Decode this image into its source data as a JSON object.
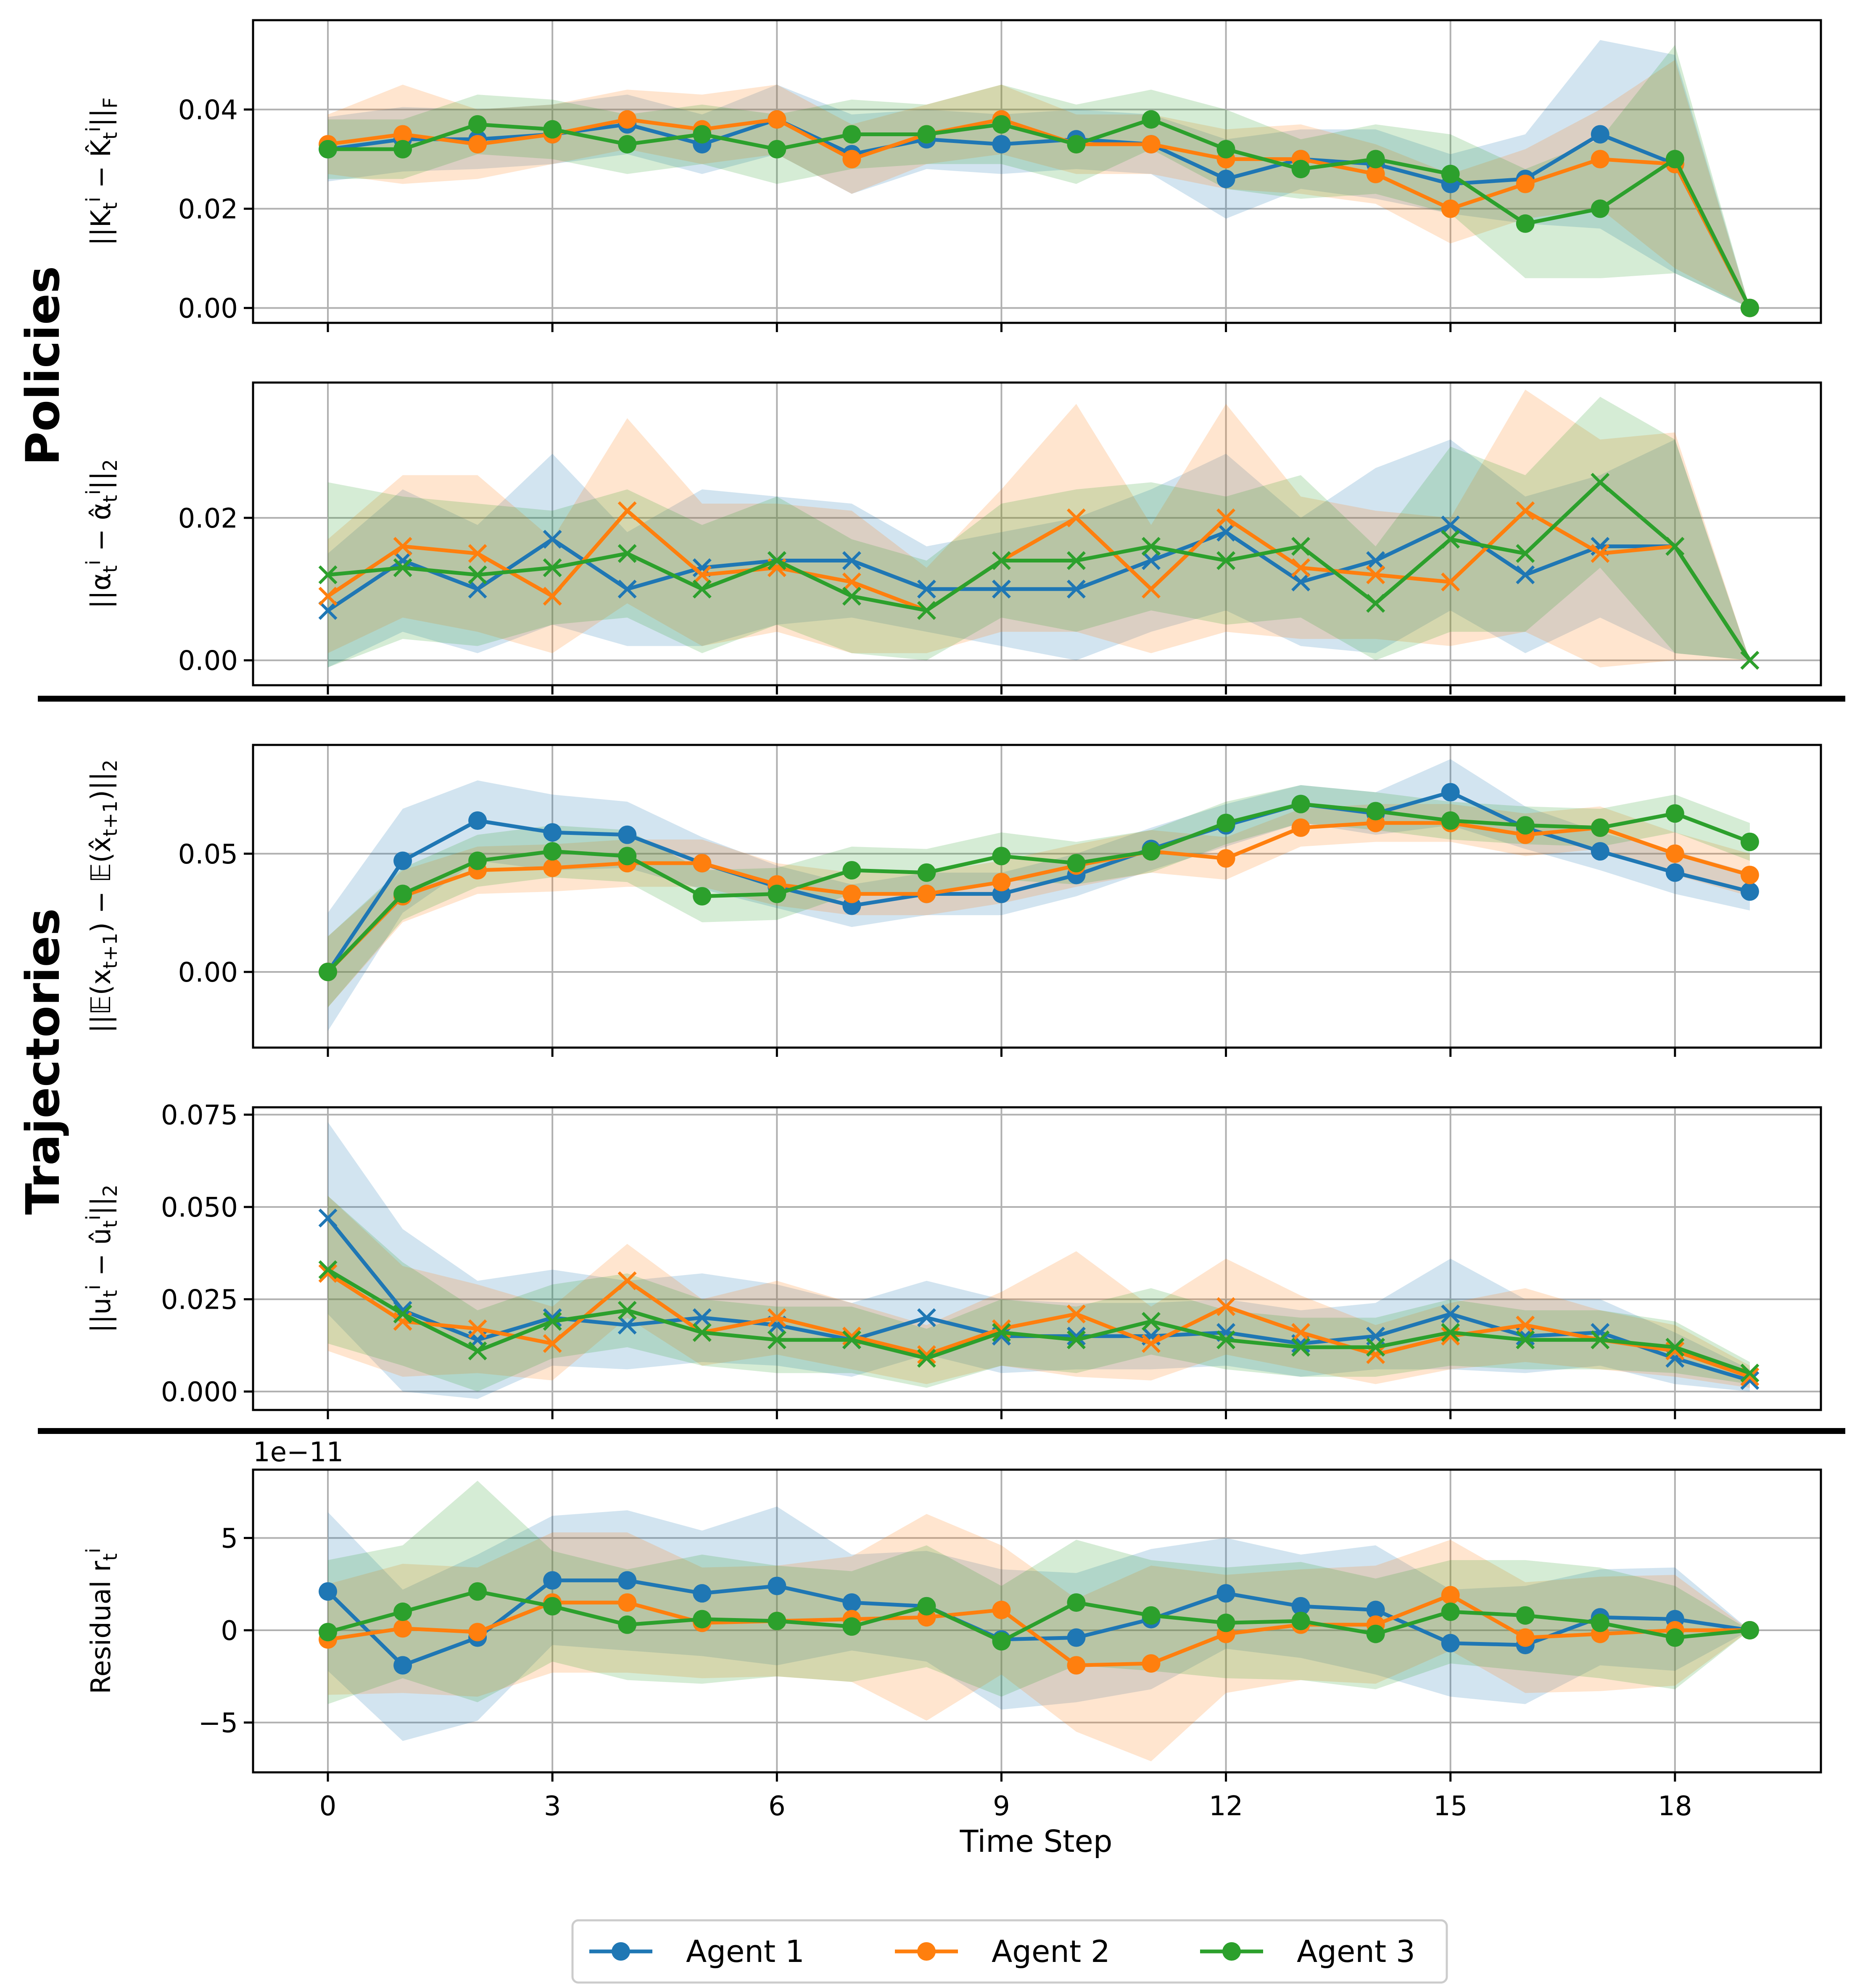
{
  "figure": {
    "section_policies": "Policies",
    "section_trajectories": "Trajectories",
    "xlabel": "Time Step",
    "legend": [
      "Agent 1",
      "Agent 2",
      "Agent 3"
    ]
  },
  "colors": {
    "agent1": "#1f77b4",
    "agent2": "#ff7f0e",
    "agent3": "#2ca02c",
    "grid": "#b0b0b0"
  },
  "chart_data": [
    {
      "type": "line",
      "id": "policy-k",
      "ylabel": "||K_t^i − K̂_t^i||_F",
      "marker": "circle",
      "x": [
        0,
        1,
        2,
        3,
        4,
        5,
        6,
        7,
        8,
        9,
        10,
        11,
        12,
        13,
        14,
        15,
        16,
        17,
        18,
        19
      ],
      "xticks": [
        0,
        3,
        6,
        9,
        12,
        15,
        18
      ],
      "ylim": [
        -0.003,
        0.058
      ],
      "yticks": [
        0.0,
        0.02,
        0.04
      ],
      "yticklabels": [
        "0.00",
        "0.02",
        "0.04"
      ],
      "series": [
        {
          "name": "Agent 1",
          "values": [
            0.032,
            0.034,
            0.034,
            0.035,
            0.037,
            0.033,
            0.038,
            0.031,
            0.034,
            0.033,
            0.034,
            0.033,
            0.026,
            0.03,
            0.029,
            0.025,
            0.026,
            0.035,
            0.029,
            0.0
          ],
          "band": [
            0.0065,
            0.0065,
            0.006,
            0.006,
            0.006,
            0.006,
            0.007,
            0.008,
            0.006,
            0.006,
            0.006,
            0.006,
            0.008,
            0.006,
            0.007,
            0.006,
            0.009,
            0.019,
            0.022,
            0.0
          ]
        },
        {
          "name": "Agent 2",
          "values": [
            0.033,
            0.035,
            0.033,
            0.035,
            0.038,
            0.036,
            0.038,
            0.03,
            0.035,
            0.038,
            0.033,
            0.033,
            0.03,
            0.03,
            0.027,
            0.02,
            0.025,
            0.03,
            0.029,
            0.0
          ],
          "band": [
            0.006,
            0.01,
            0.007,
            0.006,
            0.006,
            0.007,
            0.007,
            0.007,
            0.006,
            0.007,
            0.006,
            0.006,
            0.006,
            0.007,
            0.006,
            0.007,
            0.007,
            0.01,
            0.021,
            0.0
          ]
        },
        {
          "name": "Agent 3",
          "values": [
            0.032,
            0.032,
            0.037,
            0.036,
            0.033,
            0.035,
            0.032,
            0.035,
            0.035,
            0.037,
            0.033,
            0.038,
            0.032,
            0.028,
            0.03,
            0.027,
            0.017,
            0.02,
            0.03,
            0.0
          ],
          "band": [
            0.006,
            0.006,
            0.006,
            0.006,
            0.006,
            0.006,
            0.007,
            0.007,
            0.006,
            0.008,
            0.008,
            0.006,
            0.008,
            0.006,
            0.007,
            0.008,
            0.011,
            0.014,
            0.023,
            0.0
          ]
        }
      ]
    },
    {
      "type": "line",
      "id": "policy-alpha",
      "ylabel": "||α_t^i − α̂_t^i||_2",
      "marker": "x",
      "x": [
        0,
        1,
        2,
        3,
        4,
        5,
        6,
        7,
        8,
        9,
        10,
        11,
        12,
        13,
        14,
        15,
        16,
        17,
        18,
        19
      ],
      "xticks": [
        0,
        3,
        6,
        9,
        12,
        15,
        18
      ],
      "ylim": [
        -0.0035,
        0.039
      ],
      "yticks": [
        0.0,
        0.02
      ],
      "yticklabels": [
        "0.00",
        "0.02"
      ],
      "series": [
        {
          "name": "Agent 1",
          "values": [
            0.007,
            0.014,
            0.01,
            0.017,
            0.01,
            0.013,
            0.014,
            0.014,
            0.01,
            0.01,
            0.01,
            0.014,
            0.018,
            0.011,
            0.014,
            0.019,
            0.012,
            0.016,
            0.016,
            0.0
          ],
          "band": [
            0.008,
            0.01,
            0.009,
            0.012,
            0.008,
            0.011,
            0.009,
            0.008,
            0.006,
            0.008,
            0.01,
            0.01,
            0.011,
            0.009,
            0.013,
            0.012,
            0.011,
            0.01,
            0.015,
            0.0
          ]
        },
        {
          "name": "Agent 2",
          "values": [
            0.009,
            0.016,
            0.015,
            0.009,
            0.021,
            0.012,
            0.013,
            0.011,
            0.007,
            0.014,
            0.02,
            0.01,
            0.02,
            0.013,
            0.012,
            0.011,
            0.021,
            0.015,
            0.016,
            0.0
          ],
          "band": [
            0.008,
            0.01,
            0.011,
            0.008,
            0.013,
            0.01,
            0.009,
            0.01,
            0.006,
            0.01,
            0.016,
            0.009,
            0.016,
            0.01,
            0.009,
            0.009,
            0.017,
            0.016,
            0.016,
            0.0
          ]
        },
        {
          "name": "Agent 3",
          "values": [
            0.012,
            0.013,
            0.012,
            0.013,
            0.015,
            0.01,
            0.014,
            0.009,
            0.007,
            0.014,
            0.014,
            0.016,
            0.014,
            0.016,
            0.008,
            0.017,
            0.015,
            0.025,
            0.016,
            0.0
          ],
          "band": [
            0.013,
            0.01,
            0.01,
            0.008,
            0.009,
            0.009,
            0.009,
            0.008,
            0.007,
            0.008,
            0.01,
            0.009,
            0.009,
            0.01,
            0.008,
            0.013,
            0.011,
            0.012,
            0.015,
            0.0
          ]
        }
      ]
    },
    {
      "type": "line",
      "id": "traj-state",
      "ylabel": "||𝔼(x_{t+1}) − 𝔼(x̂_{t+1})||_2",
      "marker": "circle",
      "x": [
        0,
        1,
        2,
        3,
        4,
        5,
        6,
        7,
        8,
        9,
        10,
        11,
        12,
        13,
        14,
        15,
        16,
        17,
        18,
        19
      ],
      "xticks": [
        0,
        3,
        6,
        9,
        12,
        15,
        18
      ],
      "ylim": [
        -0.032,
        0.096
      ],
      "yticks": [
        0.0,
        0.05
      ],
      "yticklabels": [
        "0.00",
        "0.05"
      ],
      "series": [
        {
          "name": "Agent 1",
          "values": [
            0.0,
            0.047,
            0.064,
            0.059,
            0.058,
            0.046,
            0.036,
            0.028,
            0.033,
            0.033,
            0.041,
            0.052,
            0.062,
            0.071,
            0.067,
            0.076,
            0.061,
            0.051,
            0.042,
            0.034
          ],
          "band": [
            0.025,
            0.022,
            0.017,
            0.016,
            0.014,
            0.011,
            0.009,
            0.009,
            0.009,
            0.009,
            0.009,
            0.009,
            0.009,
            0.008,
            0.009,
            0.014,
            0.009,
            0.008,
            0.009,
            0.008
          ]
        },
        {
          "name": "Agent 2",
          "values": [
            0.0,
            0.032,
            0.043,
            0.044,
            0.046,
            0.046,
            0.037,
            0.033,
            0.033,
            0.038,
            0.045,
            0.051,
            0.048,
            0.061,
            0.063,
            0.063,
            0.058,
            0.061,
            0.05,
            0.041
          ],
          "band": [
            0.015,
            0.011,
            0.01,
            0.01,
            0.01,
            0.01,
            0.009,
            0.009,
            0.009,
            0.009,
            0.009,
            0.009,
            0.009,
            0.008,
            0.008,
            0.008,
            0.009,
            0.009,
            0.009,
            0.009
          ]
        },
        {
          "name": "Agent 3",
          "values": [
            0.0,
            0.033,
            0.047,
            0.051,
            0.049,
            0.032,
            0.033,
            0.043,
            0.042,
            0.049,
            0.046,
            0.051,
            0.063,
            0.071,
            0.068,
            0.064,
            0.062,
            0.061,
            0.067,
            0.055
          ],
          "band": [
            0.015,
            0.011,
            0.011,
            0.011,
            0.011,
            0.011,
            0.011,
            0.01,
            0.01,
            0.01,
            0.009,
            0.009,
            0.009,
            0.008,
            0.008,
            0.008,
            0.008,
            0.008,
            0.008,
            0.008
          ]
        }
      ]
    },
    {
      "type": "line",
      "id": "traj-control",
      "ylabel": "||u_t^i − û_t^i||_2",
      "marker": "x",
      "x": [
        0,
        1,
        2,
        3,
        4,
        5,
        6,
        7,
        8,
        9,
        10,
        11,
        12,
        13,
        14,
        15,
        16,
        17,
        18,
        19
      ],
      "xticks": [
        0,
        3,
        6,
        9,
        12,
        15,
        18
      ],
      "ylim": [
        -0.005,
        0.077
      ],
      "yticks": [
        0.0,
        0.025,
        0.05,
        0.075
      ],
      "yticklabels": [
        "0.000",
        "0.025",
        "0.050",
        "0.075"
      ],
      "series": [
        {
          "name": "Agent 1",
          "values": [
            0.047,
            0.022,
            0.014,
            0.02,
            0.018,
            0.02,
            0.018,
            0.014,
            0.02,
            0.015,
            0.015,
            0.015,
            0.016,
            0.013,
            0.015,
            0.021,
            0.015,
            0.016,
            0.009,
            0.003
          ],
          "band": [
            0.026,
            0.022,
            0.016,
            0.013,
            0.012,
            0.012,
            0.011,
            0.01,
            0.01,
            0.01,
            0.009,
            0.009,
            0.009,
            0.009,
            0.009,
            0.015,
            0.01,
            0.009,
            0.007,
            0.003
          ]
        },
        {
          "name": "Agent 2",
          "values": [
            0.032,
            0.019,
            0.017,
            0.013,
            0.03,
            0.016,
            0.02,
            0.015,
            0.01,
            0.017,
            0.021,
            0.013,
            0.023,
            0.016,
            0.01,
            0.015,
            0.018,
            0.014,
            0.011,
            0.004
          ],
          "band": [
            0.021,
            0.015,
            0.012,
            0.01,
            0.01,
            0.009,
            0.01,
            0.009,
            0.008,
            0.01,
            0.017,
            0.01,
            0.013,
            0.01,
            0.008,
            0.009,
            0.01,
            0.008,
            0.007,
            0.003
          ]
        },
        {
          "name": "Agent 3",
          "values": [
            0.033,
            0.021,
            0.011,
            0.019,
            0.022,
            0.016,
            0.014,
            0.014,
            0.009,
            0.016,
            0.014,
            0.019,
            0.014,
            0.012,
            0.012,
            0.016,
            0.014,
            0.014,
            0.012,
            0.005
          ],
          "band": [
            0.02,
            0.014,
            0.011,
            0.01,
            0.01,
            0.009,
            0.009,
            0.009,
            0.008,
            0.009,
            0.009,
            0.009,
            0.008,
            0.008,
            0.008,
            0.009,
            0.008,
            0.008,
            0.007,
            0.003
          ]
        }
      ]
    },
    {
      "type": "line",
      "id": "residual",
      "ylabel": "Residual r_t^i",
      "marker": "circle",
      "offset_label": "1e−11",
      "x": [
        0,
        1,
        2,
        3,
        4,
        5,
        6,
        7,
        8,
        9,
        10,
        11,
        12,
        13,
        14,
        15,
        16,
        17,
        18,
        19
      ],
      "xticks": [
        0,
        3,
        6,
        9,
        12,
        15,
        18
      ],
      "xticklabels": [
        "0",
        "3",
        "6",
        "9",
        "12",
        "15",
        "18"
      ],
      "ylim": [
        -7.7,
        8.7
      ],
      "yticks": [
        -5,
        0,
        5
      ],
      "yticklabels": [
        "−5",
        "0",
        "5"
      ],
      "series": [
        {
          "name": "Agent 1",
          "values": [
            2.1,
            -1.9,
            -0.4,
            2.7,
            2.7,
            2.0,
            2.4,
            1.5,
            1.3,
            -0.5,
            -0.4,
            0.6,
            2.0,
            1.3,
            1.1,
            -0.7,
            -0.8,
            0.7,
            0.6,
            0.0
          ],
          "band": [
            4.3,
            4.1,
            4.5,
            3.5,
            3.8,
            3.4,
            4.3,
            2.6,
            3.0,
            3.8,
            3.5,
            3.8,
            3.0,
            2.8,
            3.5,
            2.9,
            3.2,
            2.6,
            2.8,
            0.0
          ]
        },
        {
          "name": "Agent 2",
          "values": [
            -0.5,
            0.1,
            -0.1,
            1.5,
            1.5,
            0.4,
            0.5,
            0.6,
            0.7,
            1.1,
            -1.9,
            -1.8,
            -0.2,
            0.3,
            0.3,
            1.9,
            -0.4,
            -0.2,
            0.0,
            0.0
          ],
          "band": [
            3.0,
            3.5,
            3.5,
            3.8,
            3.8,
            3.0,
            3.0,
            3.4,
            5.6,
            3.5,
            3.6,
            5.3,
            3.2,
            3.0,
            3.2,
            3.0,
            3.0,
            3.1,
            3.0,
            0.0
          ]
        },
        {
          "name": "Agent 3",
          "values": [
            -0.1,
            1.0,
            2.1,
            1.3,
            0.3,
            0.6,
            0.5,
            0.2,
            1.3,
            -0.6,
            1.5,
            0.8,
            0.4,
            0.5,
            -0.2,
            1.0,
            0.8,
            0.4,
            -0.4,
            0.0
          ],
          "band": [
            3.9,
            3.6,
            6.0,
            3.0,
            3.0,
            3.5,
            3.0,
            3.0,
            3.3,
            3.0,
            3.4,
            3.0,
            3.0,
            3.2,
            3.0,
            2.8,
            3.0,
            3.0,
            2.8,
            0.0
          ]
        }
      ]
    }
  ]
}
